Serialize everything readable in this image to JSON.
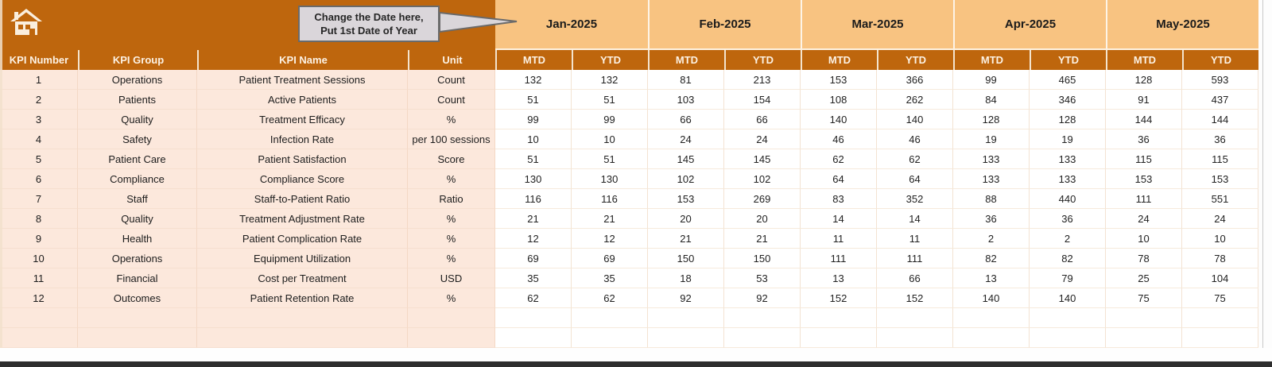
{
  "callout": {
    "line1": "Change the Date here,",
    "line2": "Put 1st Date of Year"
  },
  "months": [
    "Jan-2025",
    "Feb-2025",
    "Mar-2025",
    "Apr-2025",
    "May-2025"
  ],
  "period_headers": [
    "MTD",
    "YTD"
  ],
  "left_headers": [
    "KPI Number",
    "KPI Group",
    "KPI Name",
    "Unit"
  ],
  "rows": [
    {
      "number": "1",
      "group": "Operations",
      "name": "Patient Treatment Sessions",
      "unit": "Count",
      "values": [
        "132",
        "132",
        "81",
        "213",
        "153",
        "366",
        "99",
        "465",
        "128",
        "593"
      ]
    },
    {
      "number": "2",
      "group": "Patients",
      "name": "Active Patients",
      "unit": "Count",
      "values": [
        "51",
        "51",
        "103",
        "154",
        "108",
        "262",
        "84",
        "346",
        "91",
        "437"
      ]
    },
    {
      "number": "3",
      "group": "Quality",
      "name": "Treatment Efficacy",
      "unit": "%",
      "values": [
        "99",
        "99",
        "66",
        "66",
        "140",
        "140",
        "128",
        "128",
        "144",
        "144"
      ]
    },
    {
      "number": "4",
      "group": "Safety",
      "name": "Infection Rate",
      "unit": "per 100 sessions",
      "values": [
        "10",
        "10",
        "24",
        "24",
        "46",
        "46",
        "19",
        "19",
        "36",
        "36"
      ]
    },
    {
      "number": "5",
      "group": "Patient Care",
      "name": "Patient Satisfaction",
      "unit": "Score",
      "values": [
        "51",
        "51",
        "145",
        "145",
        "62",
        "62",
        "133",
        "133",
        "115",
        "115"
      ]
    },
    {
      "number": "6",
      "group": "Compliance",
      "name": "Compliance Score",
      "unit": "%",
      "values": [
        "130",
        "130",
        "102",
        "102",
        "64",
        "64",
        "133",
        "133",
        "153",
        "153"
      ]
    },
    {
      "number": "7",
      "group": "Staff",
      "name": "Staff-to-Patient Ratio",
      "unit": "Ratio",
      "values": [
        "116",
        "116",
        "153",
        "269",
        "83",
        "352",
        "88",
        "440",
        "111",
        "551"
      ]
    },
    {
      "number": "8",
      "group": "Quality",
      "name": "Treatment Adjustment Rate",
      "unit": "%",
      "values": [
        "21",
        "21",
        "20",
        "20",
        "14",
        "14",
        "36",
        "36",
        "24",
        "24"
      ]
    },
    {
      "number": "9",
      "group": "Health",
      "name": "Patient Complication Rate",
      "unit": "%",
      "values": [
        "12",
        "12",
        "21",
        "21",
        "11",
        "11",
        "2",
        "2",
        "10",
        "10"
      ]
    },
    {
      "number": "10",
      "group": "Operations",
      "name": "Equipment Utilization",
      "unit": "%",
      "values": [
        "69",
        "69",
        "150",
        "150",
        "111",
        "111",
        "82",
        "82",
        "78",
        "78"
      ]
    },
    {
      "number": "11",
      "group": "Financial",
      "name": "Cost per Treatment",
      "unit": "USD",
      "values": [
        "35",
        "35",
        "18",
        "53",
        "13",
        "66",
        "13",
        "79",
        "25",
        "104"
      ]
    },
    {
      "number": "12",
      "group": "Outcomes",
      "name": "Patient Retention Rate",
      "unit": "%",
      "values": [
        "62",
        "62",
        "92",
        "92",
        "152",
        "152",
        "140",
        "140",
        "75",
        "75"
      ]
    }
  ],
  "empty_row_count": 2,
  "colors": {
    "header_orange": "#BE660D",
    "month_band_orange": "#F8C381",
    "row_pink": "#FCE8DC",
    "callout_fill": "#DAD6DA",
    "callout_border": "#6A6A6A",
    "bottom_bar": "#2E2E2E"
  }
}
